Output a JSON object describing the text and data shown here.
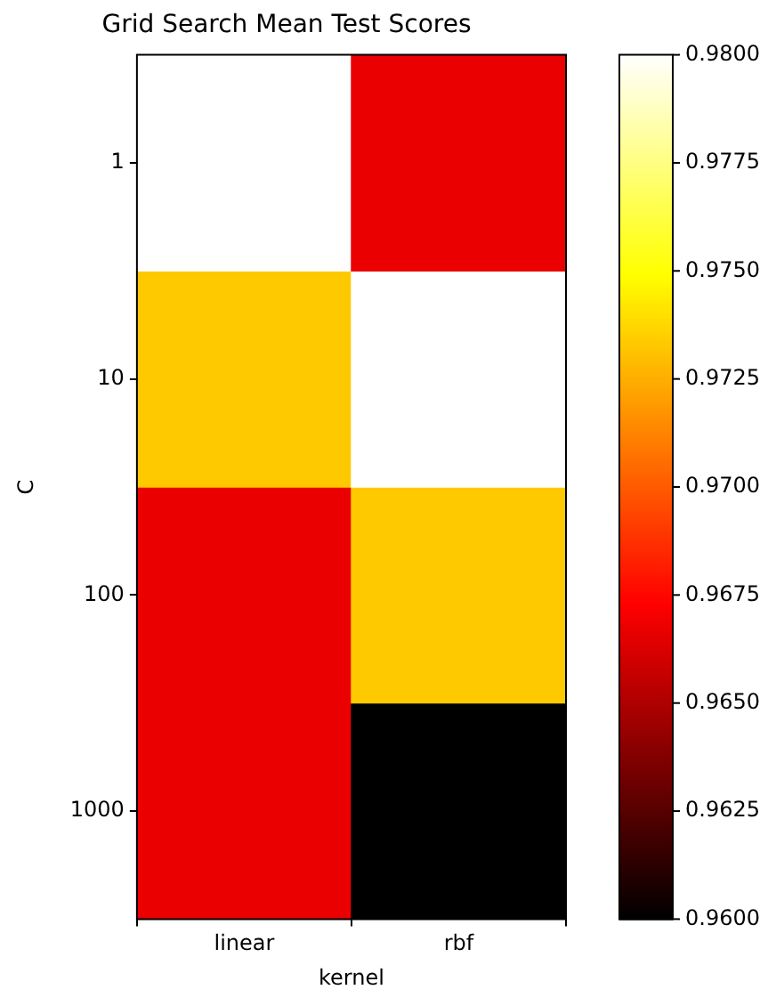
{
  "chart_data": {
    "type": "heatmap",
    "title": "Grid Search Mean Test Scores",
    "xlabel": "kernel",
    "ylabel": "C",
    "categories": [
      "linear",
      "rbf"
    ],
    "y_categories": [
      "1",
      "10",
      "100",
      "1000"
    ],
    "cells": [
      [
        0.98,
        0.9667
      ],
      [
        0.9733,
        0.98
      ],
      [
        0.9667,
        0.9733
      ],
      [
        0.9667,
        0.96
      ]
    ],
    "clim": [
      0.96,
      0.98
    ],
    "cticks": [
      {
        "value": 0.96,
        "label": "0.9600"
      },
      {
        "value": 0.9625,
        "label": "0.9625"
      },
      {
        "value": 0.965,
        "label": "0.9650"
      },
      {
        "value": 0.9675,
        "label": "0.9675"
      },
      {
        "value": 0.97,
        "label": "0.9700"
      },
      {
        "value": 0.9725,
        "label": "0.9725"
      },
      {
        "value": 0.975,
        "label": "0.9750"
      },
      {
        "value": 0.9775,
        "label": "0.9775"
      },
      {
        "value": 0.98,
        "label": "0.9800"
      }
    ]
  }
}
